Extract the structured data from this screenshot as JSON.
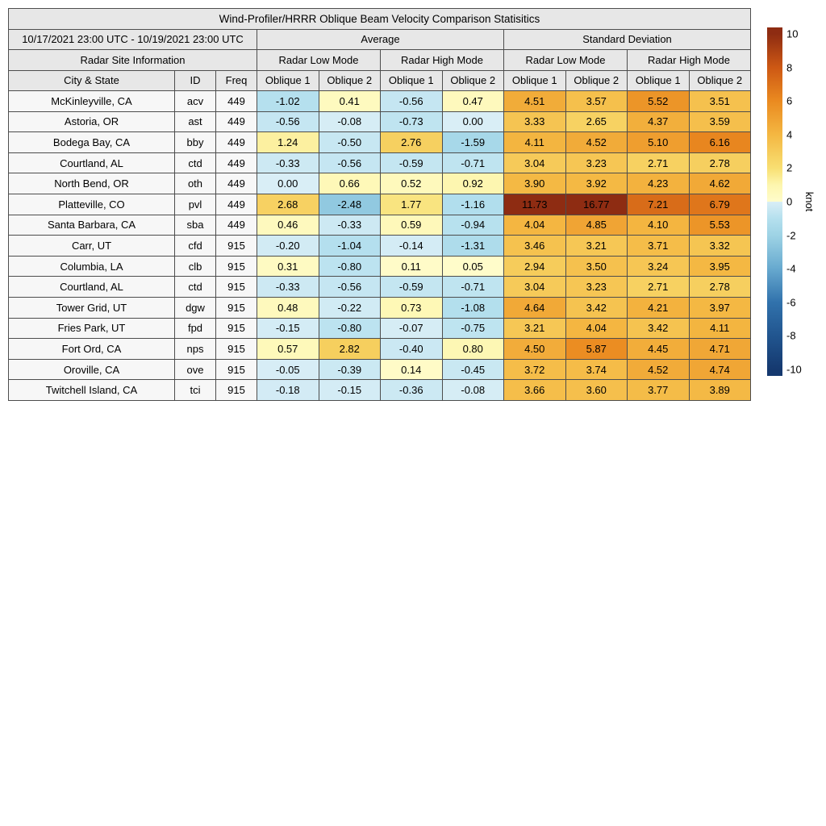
{
  "chart_data": {
    "type": "heatmap-table",
    "title": "Wind-Profiler/HRRR Oblique Beam Velocity Comparison Statisitics",
    "date_range": "10/17/2021 23:00 UTC - 10/19/2021 23:00 UTC",
    "group_headers": [
      "Average",
      "Standard Deviation"
    ],
    "site_info_header": "Radar Site Information",
    "mode_headers": [
      "Radar Low Mode",
      "Radar High Mode",
      "Radar Low Mode",
      "Radar High Mode"
    ],
    "column_headers": [
      "City & State",
      "ID",
      "Freq",
      "Oblique 1",
      "Oblique 2",
      "Oblique 1",
      "Oblique 2",
      "Oblique 1",
      "Oblique 2",
      "Oblique 1",
      "Oblique 2"
    ],
    "rows": [
      {
        "city": "McKinleyville, CA",
        "id": "acv",
        "freq": "449",
        "values": [
          -1.02,
          0.41,
          -0.56,
          0.47,
          4.51,
          3.57,
          5.52,
          3.51
        ]
      },
      {
        "city": "Astoria, OR",
        "id": "ast",
        "freq": "449",
        "values": [
          -0.56,
          -0.08,
          -0.73,
          0.0,
          3.33,
          2.65,
          4.37,
          3.59
        ]
      },
      {
        "city": "Bodega Bay, CA",
        "id": "bby",
        "freq": "449",
        "values": [
          1.24,
          -0.5,
          2.76,
          -1.59,
          4.11,
          4.52,
          5.1,
          6.16
        ]
      },
      {
        "city": "Courtland, AL",
        "id": "ctd",
        "freq": "449",
        "values": [
          -0.33,
          -0.56,
          -0.59,
          -0.71,
          3.04,
          3.23,
          2.71,
          2.78
        ]
      },
      {
        "city": "North Bend, OR",
        "id": "oth",
        "freq": "449",
        "values": [
          0.0,
          0.66,
          0.52,
          0.92,
          3.9,
          3.92,
          4.23,
          4.62
        ]
      },
      {
        "city": "Platteville, CO",
        "id": "pvl",
        "freq": "449",
        "values": [
          2.68,
          -2.48,
          1.77,
          -1.16,
          11.73,
          16.77,
          7.21,
          6.79
        ]
      },
      {
        "city": "Santa Barbara, CA",
        "id": "sba",
        "freq": "449",
        "values": [
          0.46,
          -0.33,
          0.59,
          -0.94,
          4.04,
          4.85,
          4.1,
          5.53
        ]
      },
      {
        "city": "Carr, UT",
        "id": "cfd",
        "freq": "915",
        "values": [
          -0.2,
          -1.04,
          -0.14,
          -1.31,
          3.46,
          3.21,
          3.71,
          3.32
        ]
      },
      {
        "city": "Columbia, LA",
        "id": "clb",
        "freq": "915",
        "values": [
          0.31,
          -0.8,
          0.11,
          0.05,
          2.94,
          3.5,
          3.24,
          3.95
        ]
      },
      {
        "city": "Courtland, AL",
        "id": "ctd",
        "freq": "915",
        "values": [
          -0.33,
          -0.56,
          -0.59,
          -0.71,
          3.04,
          3.23,
          2.71,
          2.78
        ]
      },
      {
        "city": "Tower Grid, UT",
        "id": "dgw",
        "freq": "915",
        "values": [
          0.48,
          -0.22,
          0.73,
          -1.08,
          4.64,
          3.42,
          4.21,
          3.97
        ]
      },
      {
        "city": "Fries Park, UT",
        "id": "fpd",
        "freq": "915",
        "values": [
          -0.15,
          -0.8,
          -0.07,
          -0.75,
          3.21,
          4.04,
          3.42,
          4.11
        ]
      },
      {
        "city": "Fort Ord, CA",
        "id": "nps",
        "freq": "915",
        "values": [
          0.57,
          2.82,
          -0.4,
          0.8,
          4.5,
          5.87,
          4.45,
          4.71
        ]
      },
      {
        "city": "Oroville, CA",
        "id": "ove",
        "freq": "915",
        "values": [
          -0.05,
          -0.39,
          0.14,
          -0.45,
          3.72,
          3.74,
          4.52,
          4.74
        ]
      },
      {
        "city": "Twitchell Island, CA",
        "id": "tci",
        "freq": "915",
        "values": [
          -0.18,
          -0.15,
          -0.36,
          -0.08,
          3.66,
          3.6,
          3.77,
          3.89
        ]
      }
    ],
    "colorbar": {
      "unit": "knot",
      "ticks": [
        10,
        8,
        6,
        4,
        2,
        0,
        -2,
        -4,
        -6,
        -8,
        -10
      ],
      "range": [
        -10,
        10
      ],
      "stops_negative": [
        [
          -10,
          "#15396f"
        ],
        [
          -8,
          "#21558f"
        ],
        [
          -6,
          "#3172ac"
        ],
        [
          -4,
          "#67a9cf"
        ],
        [
          -2,
          "#9ed3e5"
        ],
        [
          -1,
          "#b5e0ee"
        ],
        [
          0,
          "#d9eef6"
        ]
      ],
      "stops_positive": [
        [
          0,
          "#fffccb"
        ],
        [
          1,
          "#fdf6ae"
        ],
        [
          2,
          "#f8df72"
        ],
        [
          4,
          "#f4b742"
        ],
        [
          6,
          "#ea8a20"
        ],
        [
          8,
          "#cd5814"
        ],
        [
          10,
          "#8e2c12"
        ]
      ]
    },
    "styles": {
      "header_bg": "#e7e7e7",
      "label_bg": "#f7f7f7",
      "grid_color": "#4d4d4d"
    }
  }
}
